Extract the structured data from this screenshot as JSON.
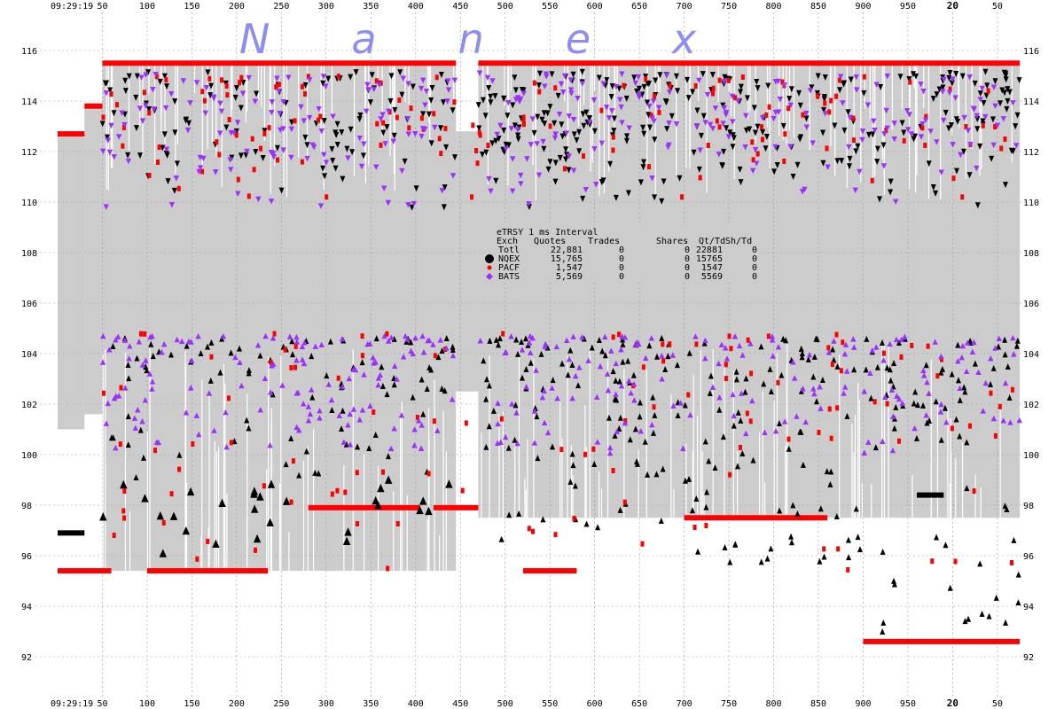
{
  "chart_data": {
    "type": "scatter",
    "title": "",
    "brand": "Nanex",
    "time_start": "09:29:19",
    "x_axis": {
      "start_label": "09:29:19",
      "ticks": [
        "50",
        "100",
        "150",
        "200",
        "250",
        "300",
        "350",
        "400",
        "450",
        "500",
        "550",
        "600",
        "650",
        "700",
        "750",
        "800",
        "850",
        "900",
        "950",
        "20",
        "50"
      ],
      "tick_positions_ms": [
        50,
        100,
        150,
        200,
        250,
        300,
        350,
        400,
        450,
        500,
        550,
        600,
        650,
        700,
        750,
        800,
        850,
        900,
        950,
        1000,
        1050
      ],
      "bold_tick_labels": [
        "20"
      ],
      "xlim": [
        0,
        1060
      ]
    },
    "y_axis": {
      "ticks": [
        92,
        94,
        96,
        98,
        100,
        102,
        104,
        106,
        108,
        110,
        112,
        114,
        116
      ],
      "ylim": [
        91.2,
        116.3
      ],
      "grid": true
    },
    "legend": {
      "title": "eTRSY 1 ms Interval",
      "columns": [
        "Exch",
        "Quotes",
        "Trades",
        "Shares",
        "Qt/Td",
        "Sh/Td"
      ],
      "rows": [
        {
          "exch": "Totl",
          "quotes": "22,881",
          "trades": "0",
          "shares": "0",
          "qt_td": "22881",
          "sh_td": "0",
          "color": "",
          "marker": ""
        },
        {
          "exch": "NQEX",
          "quotes": "15,765",
          "trades": "0",
          "shares": "0",
          "qt_td": "15765",
          "sh_td": "0",
          "color": "#000000",
          "marker": "circle-large"
        },
        {
          "exch": "PACF",
          "quotes": "1,547",
          "trades": "0",
          "shares": "0",
          "qt_td": "1547",
          "sh_td": "0",
          "color": "#ff0000",
          "marker": "circle-small"
        },
        {
          "exch": "BATS",
          "quotes": "5,569",
          "trades": "0",
          "shares": "0",
          "qt_td": "5569",
          "sh_td": "0",
          "color": "#9b30ff",
          "marker": "diamond"
        }
      ]
    },
    "nbbo_bands": [
      {
        "x0": 0,
        "x1": 30,
        "bid": 101.0,
        "ask": 112.7
      },
      {
        "x0": 30,
        "x1": 50,
        "bid": 101.6,
        "ask": 113.8
      },
      {
        "x0": 50,
        "x1": 445,
        "bid": 95.4,
        "ask": 115.5
      },
      {
        "x0": 445,
        "x1": 470,
        "bid": 102.5,
        "ask": 112.8
      },
      {
        "x0": 470,
        "x1": 1075,
        "bid": 97.5,
        "ask": 115.5
      }
    ],
    "pacf_flat_ask": [
      {
        "x0": 0,
        "x1": 30,
        "y": 112.7
      },
      {
        "x0": 30,
        "x1": 50,
        "y": 113.8
      },
      {
        "x0": 50,
        "x1": 445,
        "y": 115.5
      },
      {
        "x0": 470,
        "x1": 1075,
        "y": 115.5
      }
    ],
    "pacf_flat_bid": [
      {
        "x0": 0,
        "x1": 60,
        "y": 95.4
      },
      {
        "x0": 100,
        "x1": 235,
        "y": 95.4
      },
      {
        "x0": 280,
        "x1": 405,
        "y": 97.9
      },
      {
        "x0": 420,
        "x1": 470,
        "y": 97.9
      },
      {
        "x0": 520,
        "x1": 580,
        "y": 95.4
      },
      {
        "x0": 700,
        "x1": 860,
        "y": 97.5
      },
      {
        "x0": 900,
        "x1": 1075,
        "y": 92.6
      }
    ],
    "nqex_flat_bid": [
      {
        "x0": 0,
        "x1": 30,
        "y": 96.9
      },
      {
        "x0": 960,
        "x1": 990,
        "y": 98.4
      }
    ],
    "series": [
      {
        "name": "NQEX",
        "color": "#000000",
        "ask_range": [
          109.8,
          115.2
        ],
        "bid_range": [
          92.9,
          104.6
        ]
      },
      {
        "name": "PACF",
        "color": "#ff0000",
        "ask_range": [
          110.2,
          115.0
        ],
        "bid_range": [
          95.4,
          104.8
        ]
      },
      {
        "name": "BATS",
        "color": "#9b30ff",
        "ask_range": [
          109.8,
          115.1
        ],
        "bid_range": [
          100.0,
          104.7
        ]
      }
    ]
  }
}
